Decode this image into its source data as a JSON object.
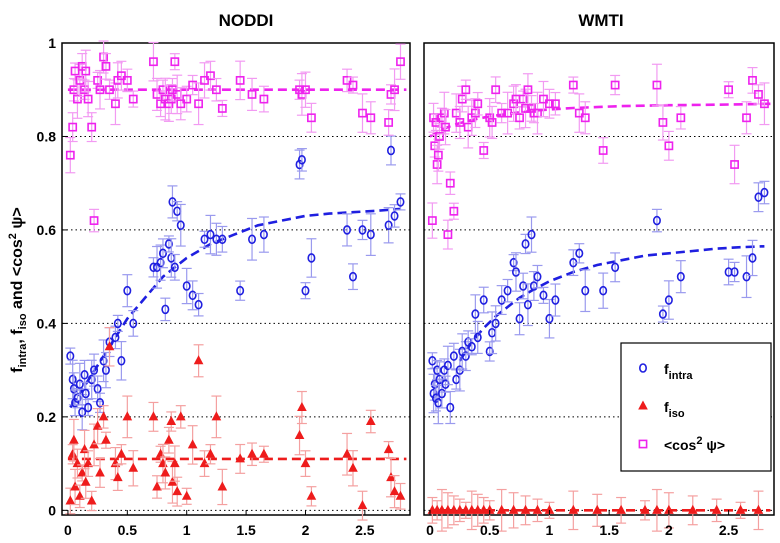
{
  "chart_data": [
    {
      "type": "scatter",
      "title": "NODDI",
      "xlabel": "",
      "ylabel": "f_intra, f_iso and <cos^2 psi>",
      "xlim": [
        -0.05,
        2.88
      ],
      "ylim": [
        -0.01,
        1.0
      ],
      "xticks": [
        0,
        0.5,
        1,
        1.5,
        2,
        2.5
      ],
      "xtick_labels": [
        "0",
        "0.5",
        "1",
        "1.5",
        "2",
        "2.5"
      ],
      "yticks": [
        0,
        0.2,
        0.4,
        0.6,
        0.8,
        1
      ],
      "ytick_labels": [
        "0",
        "0.2",
        "0.4",
        "0.6",
        "0.8",
        "1"
      ],
      "grid": "dotted horizontal",
      "series": [
        {
          "name": "f_intra",
          "color": "#1f1fe0",
          "marker": "circle",
          "x": [
            0.02,
            0.04,
            0.05,
            0.06,
            0.08,
            0.1,
            0.12,
            0.14,
            0.15,
            0.17,
            0.2,
            0.22,
            0.25,
            0.27,
            0.3,
            0.32,
            0.35,
            0.4,
            0.42,
            0.45,
            0.5,
            0.55,
            0.72,
            0.75,
            0.78,
            0.8,
            0.82,
            0.85,
            0.87,
            0.88,
            0.9,
            0.92,
            0.95,
            1.0,
            1.05,
            1.1,
            1.15,
            1.2,
            1.25,
            1.3,
            1.45,
            1.55,
            1.65,
            1.95,
            1.97,
            2.0,
            2.05,
            2.35,
            2.4,
            2.48,
            2.55,
            2.7,
            2.72,
            2.75,
            2.8
          ],
          "y": [
            0.33,
            0.28,
            0.26,
            0.23,
            0.24,
            0.27,
            0.21,
            0.29,
            0.25,
            0.22,
            0.28,
            0.3,
            0.26,
            0.23,
            0.32,
            0.3,
            0.36,
            0.37,
            0.4,
            0.32,
            0.47,
            0.4,
            0.52,
            0.52,
            0.53,
            0.55,
            0.43,
            0.57,
            0.54,
            0.66,
            0.52,
            0.64,
            0.61,
            0.48,
            0.46,
            0.44,
            0.58,
            0.59,
            0.58,
            0.58,
            0.47,
            0.58,
            0.59,
            0.74,
            0.75,
            0.47,
            0.54,
            0.6,
            0.5,
            0.6,
            0.59,
            0.61,
            0.77,
            0.63,
            0.66
          ]
        },
        {
          "name": "f_iso",
          "color": "#ee1c1c",
          "marker": "triangle",
          "x": [
            0.02,
            0.04,
            0.05,
            0.06,
            0.08,
            0.1,
            0.12,
            0.14,
            0.15,
            0.17,
            0.2,
            0.22,
            0.25,
            0.27,
            0.3,
            0.32,
            0.35,
            0.4,
            0.42,
            0.45,
            0.5,
            0.55,
            0.72,
            0.75,
            0.78,
            0.8,
            0.82,
            0.85,
            0.87,
            0.88,
            0.9,
            0.92,
            0.95,
            1.0,
            1.05,
            1.1,
            1.15,
            1.2,
            1.25,
            1.3,
            1.45,
            1.55,
            1.65,
            1.95,
            1.97,
            2.0,
            2.05,
            2.35,
            2.4,
            2.48,
            2.55,
            2.7,
            2.72,
            2.75,
            2.8
          ],
          "y": [
            0.02,
            0.12,
            0.15,
            0.05,
            0.1,
            0.03,
            0.08,
            0.13,
            0.06,
            0.1,
            0.02,
            0.14,
            0.18,
            0.08,
            0.2,
            0.15,
            0.35,
            0.1,
            0.07,
            0.12,
            0.2,
            0.09,
            0.2,
            0.05,
            0.12,
            0.1,
            0.08,
            0.15,
            0.19,
            0.06,
            0.1,
            0.04,
            0.2,
            0.03,
            0.14,
            0.32,
            0.1,
            0.12,
            0.2,
            0.05,
            0.11,
            0.12,
            0.12,
            0.16,
            0.22,
            0.1,
            0.03,
            0.12,
            0.09,
            0.01,
            0.19,
            0.13,
            0.07,
            0.04,
            0.03
          ]
        },
        {
          "name": "<cos^2 psi>",
          "color": "#ee22ee",
          "marker": "square",
          "x": [
            0.02,
            0.04,
            0.05,
            0.06,
            0.08,
            0.1,
            0.12,
            0.14,
            0.15,
            0.17,
            0.2,
            0.22,
            0.25,
            0.27,
            0.3,
            0.32,
            0.35,
            0.4,
            0.42,
            0.45,
            0.5,
            0.55,
            0.72,
            0.75,
            0.78,
            0.8,
            0.82,
            0.85,
            0.87,
            0.88,
            0.9,
            0.92,
            0.95,
            1.0,
            1.05,
            1.1,
            1.15,
            1.2,
            1.25,
            1.3,
            1.45,
            1.55,
            1.65,
            1.95,
            1.97,
            2.0,
            2.05,
            2.35,
            2.4,
            2.48,
            2.55,
            2.7,
            2.72,
            2.75,
            2.8
          ],
          "y": [
            0.76,
            0.82,
            0.9,
            0.94,
            0.88,
            0.92,
            0.95,
            0.9,
            0.94,
            0.88,
            0.82,
            0.62,
            0.92,
            0.9,
            0.97,
            0.95,
            0.9,
            0.87,
            0.92,
            0.93,
            0.92,
            0.88,
            0.96,
            0.89,
            0.87,
            0.9,
            0.88,
            0.87,
            0.88,
            0.9,
            0.96,
            0.89,
            0.87,
            0.88,
            0.91,
            0.87,
            0.92,
            0.93,
            0.9,
            0.86,
            0.92,
            0.89,
            0.88,
            0.9,
            0.89,
            0.9,
            0.84,
            0.92,
            0.91,
            0.85,
            0.84,
            0.83,
            0.89,
            0.9,
            0.96
          ]
        }
      ],
      "fits": [
        {
          "name": "f_intra fit",
          "color": "#1f1fe0",
          "x": [
            0.02,
            0.1,
            0.2,
            0.3,
            0.4,
            0.5,
            0.6,
            0.7,
            0.8,
            0.9,
            1.0,
            1.2,
            1.4,
            1.6,
            1.8,
            2.0,
            2.2,
            2.4,
            2.6,
            2.8
          ],
          "y": [
            0.22,
            0.25,
            0.29,
            0.33,
            0.37,
            0.41,
            0.44,
            0.47,
            0.5,
            0.52,
            0.54,
            0.57,
            0.59,
            0.61,
            0.62,
            0.63,
            0.635,
            0.638,
            0.641,
            0.645
          ]
        },
        {
          "name": "f_iso fit",
          "color": "#ee1c1c",
          "x": [
            0.0,
            2.85
          ],
          "y": [
            0.11,
            0.11
          ]
        },
        {
          "name": "<cos^2 psi> fit",
          "color": "#ee22ee",
          "x": [
            0.0,
            2.85
          ],
          "y": [
            0.9,
            0.9
          ]
        }
      ]
    },
    {
      "type": "scatter",
      "title": "WMTI",
      "xlabel": "",
      "ylabel": "",
      "xlim": [
        -0.05,
        2.88
      ],
      "ylim": [
        -0.01,
        1.0
      ],
      "xticks": [
        0,
        0.5,
        1,
        1.5,
        2,
        2.5
      ],
      "xtick_labels": [
        "0",
        "0.5",
        "1",
        "1.5",
        "2",
        "2.5"
      ],
      "grid": "dotted horizontal",
      "legend": {
        "placement": "bottom-right",
        "entries": [
          {
            "label": "f",
            "sub": "intra",
            "sup": "",
            "tail": "",
            "marker": "circle",
            "color": "#1f1fe0"
          },
          {
            "label": "f",
            "sub": "iso",
            "sup": "",
            "tail": "",
            "marker": "triangle",
            "color": "#ee1c1c"
          },
          {
            "label": "<cos",
            "sub": "",
            "sup": "2",
            "tail": " ψ>",
            "marker": "square",
            "color": "#ee22ee"
          }
        ]
      },
      "series": [
        {
          "name": "f_intra",
          "color": "#1f1fe0",
          "marker": "circle",
          "x": [
            0.02,
            0.03,
            0.04,
            0.05,
            0.06,
            0.07,
            0.08,
            0.1,
            0.12,
            0.13,
            0.15,
            0.17,
            0.2,
            0.22,
            0.25,
            0.27,
            0.3,
            0.32,
            0.35,
            0.38,
            0.4,
            0.45,
            0.5,
            0.52,
            0.55,
            0.6,
            0.65,
            0.7,
            0.72,
            0.75,
            0.78,
            0.8,
            0.82,
            0.85,
            0.87,
            0.9,
            0.95,
            1.0,
            1.05,
            1.2,
            1.25,
            1.3,
            1.45,
            1.55,
            1.9,
            1.95,
            2.0,
            2.1,
            2.5,
            2.55,
            2.65,
            2.7,
            2.75,
            2.8
          ],
          "y": [
            0.32,
            0.25,
            0.27,
            0.24,
            0.3,
            0.23,
            0.28,
            0.25,
            0.3,
            0.27,
            0.31,
            0.22,
            0.33,
            0.28,
            0.3,
            0.34,
            0.33,
            0.36,
            0.35,
            0.42,
            0.37,
            0.45,
            0.34,
            0.38,
            0.4,
            0.45,
            0.47,
            0.53,
            0.51,
            0.41,
            0.48,
            0.57,
            0.44,
            0.59,
            0.48,
            0.5,
            0.46,
            0.41,
            0.45,
            0.53,
            0.55,
            0.47,
            0.47,
            0.52,
            0.62,
            0.42,
            0.45,
            0.5,
            0.51,
            0.51,
            0.5,
            0.54,
            0.67,
            0.68
          ]
        },
        {
          "name": "f_iso",
          "color": "#ee1c1c",
          "marker": "triangle",
          "x": [
            0.02,
            0.06,
            0.1,
            0.15,
            0.2,
            0.25,
            0.3,
            0.35,
            0.4,
            0.45,
            0.5,
            0.6,
            0.7,
            0.8,
            0.9,
            1.0,
            1.2,
            1.4,
            1.6,
            1.8,
            1.9,
            2.0,
            2.2,
            2.4,
            2.6,
            2.75
          ],
          "y": [
            0.0,
            0.0,
            0.0,
            0.0,
            0.0,
            0.0,
            0.0,
            0.0,
            0.0,
            0.0,
            0.0,
            0.0,
            0.0,
            0.0,
            0.0,
            0.0,
            0.0,
            0.0,
            0.0,
            0.0,
            0.0,
            0.0,
            0.0,
            0.0,
            0.0,
            0.0
          ]
        },
        {
          "name": "<cos^2 psi>",
          "color": "#ee22ee",
          "marker": "square",
          "x": [
            0.02,
            0.03,
            0.04,
            0.05,
            0.06,
            0.07,
            0.08,
            0.1,
            0.12,
            0.13,
            0.15,
            0.17,
            0.2,
            0.22,
            0.25,
            0.27,
            0.3,
            0.32,
            0.35,
            0.38,
            0.4,
            0.45,
            0.5,
            0.52,
            0.55,
            0.6,
            0.65,
            0.7,
            0.72,
            0.75,
            0.78,
            0.8,
            0.82,
            0.85,
            0.87,
            0.9,
            0.95,
            1.0,
            1.05,
            1.2,
            1.25,
            1.3,
            1.45,
            1.55,
            1.9,
            1.95,
            2.0,
            2.1,
            2.5,
            2.55,
            2.65,
            2.7,
            2.75,
            2.8
          ],
          "y": [
            0.62,
            0.84,
            0.78,
            0.83,
            0.74,
            0.76,
            0.8,
            0.84,
            0.85,
            0.82,
            0.59,
            0.7,
            0.64,
            0.85,
            0.83,
            0.88,
            0.9,
            0.82,
            0.84,
            0.85,
            0.87,
            0.77,
            0.84,
            0.83,
            0.9,
            0.85,
            0.85,
            0.87,
            0.88,
            0.84,
            0.88,
            0.86,
            0.9,
            0.86,
            0.85,
            0.85,
            0.88,
            0.87,
            0.87,
            0.91,
            0.85,
            0.84,
            0.77,
            0.91,
            0.91,
            0.83,
            0.78,
            0.84,
            0.9,
            0.74,
            0.84,
            0.92,
            0.89,
            0.87
          ]
        }
      ],
      "fits": [
        {
          "name": "f_intra fit",
          "color": "#1f1fe0",
          "x": [
            0.25,
            0.35,
            0.45,
            0.55,
            0.65,
            0.75,
            0.85,
            1.0,
            1.2,
            1.4,
            1.6,
            1.8,
            2.0,
            2.2,
            2.4,
            2.6,
            2.8
          ],
          "y": [
            0.32,
            0.36,
            0.39,
            0.415,
            0.435,
            0.455,
            0.47,
            0.49,
            0.51,
            0.525,
            0.535,
            0.545,
            0.55,
            0.555,
            0.56,
            0.563,
            0.565
          ]
        },
        {
          "name": "f_iso fit",
          "color": "#ee1c1c",
          "x": [
            0.0,
            2.85
          ],
          "y": [
            0.0,
            0.0
          ]
        },
        {
          "name": "<cos^2 psi> fit",
          "color": "#ee22ee",
          "x": [
            0.0,
            0.1,
            0.2,
            0.3,
            0.4,
            0.5,
            0.7,
            0.9,
            1.2,
            1.6,
            2.0,
            2.4,
            2.85
          ],
          "y": [
            0.8,
            0.815,
            0.825,
            0.832,
            0.838,
            0.843,
            0.85,
            0.856,
            0.861,
            0.865,
            0.867,
            0.868,
            0.87
          ]
        }
      ]
    }
  ]
}
